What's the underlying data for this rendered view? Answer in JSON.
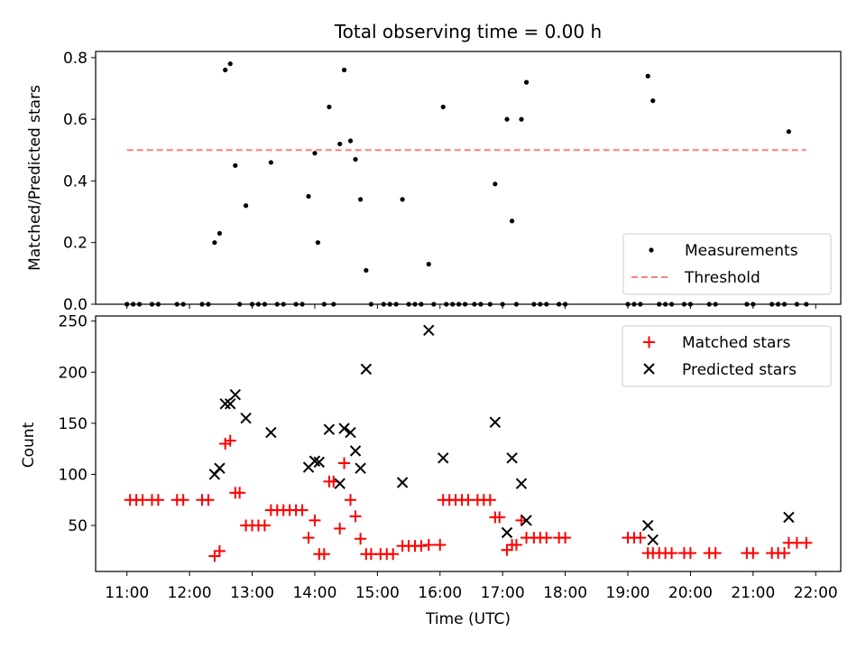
{
  "chart_data": [
    {
      "type": "scatter",
      "title": "Total observing time = 0.00 h",
      "ylabel": "Matched/Predicted stars",
      "xlabel": "",
      "xlim": [
        10.5,
        22.4
      ],
      "ylim": [
        0,
        0.82
      ],
      "yticks": [
        0.0,
        0.2,
        0.4,
        0.6,
        0.8
      ],
      "ytick_labels": [
        "0.0",
        "0.2",
        "0.4",
        "0.6",
        "0.8"
      ],
      "legend_position": "bottom-right",
      "series": [
        {
          "name": "Measurements",
          "marker": "dot",
          "color": "#000000",
          "points": [
            [
              11.0,
              0
            ],
            [
              11.1,
              0
            ],
            [
              11.2,
              0
            ],
            [
              11.4,
              0
            ],
            [
              11.5,
              0
            ],
            [
              11.8,
              0
            ],
            [
              11.9,
              0
            ],
            [
              12.2,
              0
            ],
            [
              12.3,
              0
            ],
            [
              12.4,
              0.2
            ],
            [
              12.48,
              0.23
            ],
            [
              12.57,
              0.76
            ],
            [
              12.65,
              0.78
            ],
            [
              12.73,
              0.45
            ],
            [
              12.8,
              0
            ],
            [
              12.9,
              0.32
            ],
            [
              13.0,
              0
            ],
            [
              13.1,
              0
            ],
            [
              13.2,
              0
            ],
            [
              13.3,
              0.46
            ],
            [
              13.4,
              0
            ],
            [
              13.5,
              0
            ],
            [
              13.7,
              0
            ],
            [
              13.8,
              0
            ],
            [
              13.9,
              0.35
            ],
            [
              14.0,
              0.49
            ],
            [
              14.05,
              0.2
            ],
            [
              14.15,
              0
            ],
            [
              14.23,
              0.64
            ],
            [
              14.3,
              0
            ],
            [
              14.4,
              0.52
            ],
            [
              14.47,
              0.76
            ],
            [
              14.57,
              0.53
            ],
            [
              14.65,
              0.47
            ],
            [
              14.73,
              0.34
            ],
            [
              14.82,
              0.11
            ],
            [
              14.9,
              0
            ],
            [
              15.1,
              0
            ],
            [
              15.2,
              0
            ],
            [
              15.3,
              0
            ],
            [
              15.4,
              0.34
            ],
            [
              15.5,
              0
            ],
            [
              15.6,
              0
            ],
            [
              15.7,
              0
            ],
            [
              15.82,
              0.13
            ],
            [
              15.9,
              0
            ],
            [
              16.05,
              0.64
            ],
            [
              16.1,
              0
            ],
            [
              16.2,
              0
            ],
            [
              16.3,
              0
            ],
            [
              16.4,
              0
            ],
            [
              16.55,
              0
            ],
            [
              16.65,
              0
            ],
            [
              16.8,
              0
            ],
            [
              16.88,
              0.39
            ],
            [
              17.0,
              0
            ],
            [
              17.07,
              0.6
            ],
            [
              17.15,
              0.27
            ],
            [
              17.22,
              0
            ],
            [
              17.3,
              0.6
            ],
            [
              17.38,
              0.72
            ],
            [
              17.5,
              0
            ],
            [
              17.6,
              0
            ],
            [
              17.7,
              0
            ],
            [
              17.9,
              0
            ],
            [
              18.0,
              0
            ],
            [
              19.0,
              0
            ],
            [
              19.1,
              0
            ],
            [
              19.2,
              0
            ],
            [
              19.32,
              0.74
            ],
            [
              19.4,
              0.66
            ],
            [
              19.5,
              0
            ],
            [
              19.6,
              0
            ],
            [
              19.7,
              0
            ],
            [
              19.9,
              0
            ],
            [
              20.0,
              0
            ],
            [
              20.3,
              0
            ],
            [
              20.4,
              0
            ],
            [
              20.9,
              0
            ],
            [
              21.0,
              0
            ],
            [
              21.3,
              0
            ],
            [
              21.4,
              0
            ],
            [
              21.5,
              0
            ],
            [
              21.57,
              0.56
            ],
            [
              21.7,
              0
            ],
            [
              21.85,
              0
            ]
          ]
        },
        {
          "name": "Threshold",
          "marker": "dashed-line",
          "color": "#ff7f7f",
          "points": [
            [
              11.0,
              0.5
            ],
            [
              21.85,
              0.5
            ]
          ]
        }
      ]
    },
    {
      "type": "scatter",
      "title": "",
      "ylabel": "Count",
      "xlabel": "Time (UTC)",
      "xlim": [
        10.5,
        22.4
      ],
      "ylim": [
        5,
        255
      ],
      "yticks": [
        50,
        100,
        150,
        200,
        250
      ],
      "ytick_labels": [
        "50",
        "100",
        "150",
        "200",
        "250"
      ],
      "xticks": [
        11,
        12,
        13,
        14,
        15,
        16,
        17,
        18,
        19,
        20,
        21,
        22
      ],
      "xtick_labels": [
        "11:00",
        "12:00",
        "13:00",
        "14:00",
        "15:00",
        "16:00",
        "17:00",
        "18:00",
        "19:00",
        "20:00",
        "21:00",
        "22:00"
      ],
      "legend_position": "top-right",
      "series": [
        {
          "name": "Matched stars",
          "marker": "plus",
          "color": "#ff0000",
          "points": [
            [
              11.05,
              75
            ],
            [
              11.15,
              75
            ],
            [
              11.25,
              75
            ],
            [
              11.4,
              75
            ],
            [
              11.5,
              75
            ],
            [
              11.8,
              75
            ],
            [
              11.9,
              75
            ],
            [
              12.2,
              75
            ],
            [
              12.3,
              75
            ],
            [
              12.4,
              20
            ],
            [
              12.48,
              25
            ],
            [
              12.57,
              130
            ],
            [
              12.65,
              133
            ],
            [
              12.73,
              82
            ],
            [
              12.8,
              82
            ],
            [
              12.9,
              50
            ],
            [
              13.0,
              50
            ],
            [
              13.1,
              50
            ],
            [
              13.2,
              50
            ],
            [
              13.3,
              65
            ],
            [
              13.4,
              65
            ],
            [
              13.5,
              65
            ],
            [
              13.6,
              65
            ],
            [
              13.7,
              65
            ],
            [
              13.8,
              65
            ],
            [
              13.9,
              38
            ],
            [
              14.0,
              55
            ],
            [
              14.07,
              22
            ],
            [
              14.15,
              22
            ],
            [
              14.23,
              93
            ],
            [
              14.3,
              93
            ],
            [
              14.4,
              47
            ],
            [
              14.47,
              111
            ],
            [
              14.57,
              75
            ],
            [
              14.65,
              59
            ],
            [
              14.73,
              37
            ],
            [
              14.82,
              22
            ],
            [
              14.9,
              22
            ],
            [
              15.05,
              22
            ],
            [
              15.15,
              22
            ],
            [
              15.25,
              22
            ],
            [
              15.4,
              30
            ],
            [
              15.5,
              30
            ],
            [
              15.6,
              30
            ],
            [
              15.7,
              30
            ],
            [
              15.82,
              31
            ],
            [
              16.0,
              31
            ],
            [
              16.05,
              75
            ],
            [
              16.15,
              75
            ],
            [
              16.25,
              75
            ],
            [
              16.35,
              75
            ],
            [
              16.45,
              75
            ],
            [
              16.6,
              75
            ],
            [
              16.7,
              75
            ],
            [
              16.8,
              75
            ],
            [
              16.88,
              58
            ],
            [
              16.95,
              58
            ],
            [
              17.07,
              26
            ],
            [
              17.15,
              31
            ],
            [
              17.22,
              31
            ],
            [
              17.3,
              55
            ],
            [
              17.38,
              38
            ],
            [
              17.5,
              38
            ],
            [
              17.6,
              38
            ],
            [
              17.7,
              38
            ],
            [
              17.9,
              38
            ],
            [
              18.0,
              38
            ],
            [
              19.0,
              38
            ],
            [
              19.1,
              38
            ],
            [
              19.2,
              38
            ],
            [
              19.32,
              23
            ],
            [
              19.4,
              23
            ],
            [
              19.5,
              23
            ],
            [
              19.6,
              23
            ],
            [
              19.7,
              23
            ],
            [
              19.9,
              23
            ],
            [
              20.0,
              23
            ],
            [
              20.3,
              23
            ],
            [
              20.4,
              23
            ],
            [
              20.9,
              23
            ],
            [
              21.0,
              23
            ],
            [
              21.3,
              23
            ],
            [
              21.4,
              23
            ],
            [
              21.5,
              23
            ],
            [
              21.57,
              33
            ],
            [
              21.7,
              33
            ],
            [
              21.85,
              33
            ]
          ]
        },
        {
          "name": "Predicted stars",
          "marker": "x",
          "color": "#000000",
          "points": [
            [
              12.4,
              100
            ],
            [
              12.48,
              106
            ],
            [
              12.57,
              169
            ],
            [
              12.65,
              169
            ],
            [
              12.73,
              178
            ],
            [
              12.9,
              155
            ],
            [
              13.3,
              141
            ],
            [
              13.9,
              107
            ],
            [
              14.0,
              113
            ],
            [
              14.07,
              112
            ],
            [
              14.23,
              144
            ],
            [
              14.4,
              91
            ],
            [
              14.47,
              145
            ],
            [
              14.57,
              141
            ],
            [
              14.65,
              123
            ],
            [
              14.73,
              106
            ],
            [
              14.82,
              203
            ],
            [
              15.4,
              92
            ],
            [
              15.82,
              241
            ],
            [
              16.05,
              116
            ],
            [
              16.88,
              151
            ],
            [
              17.07,
              43
            ],
            [
              17.15,
              116
            ],
            [
              17.3,
              91
            ],
            [
              17.38,
              55
            ],
            [
              19.32,
              50
            ],
            [
              19.4,
              36
            ],
            [
              21.57,
              58
            ]
          ]
        }
      ]
    }
  ]
}
